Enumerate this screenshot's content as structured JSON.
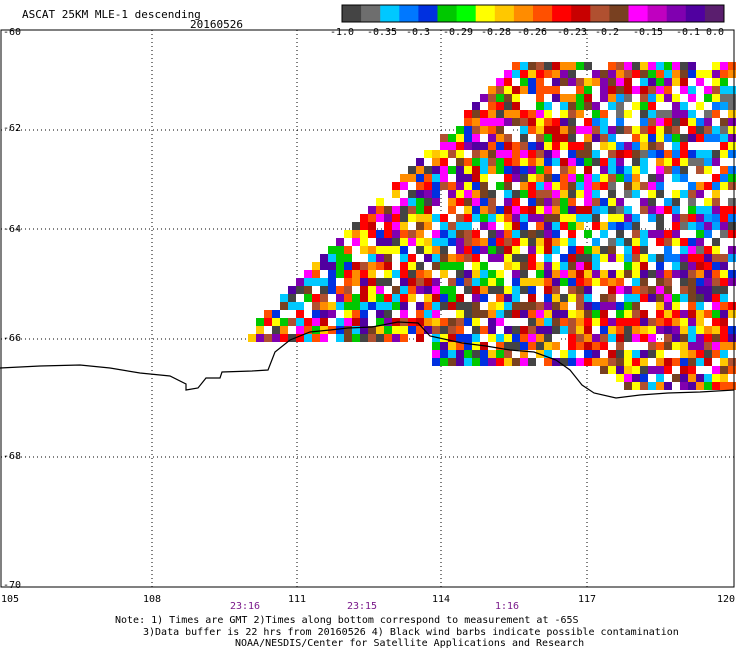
{
  "header": {
    "title": "ASCAT 25KM MLE-1 descending",
    "date": "20160526"
  },
  "colorbar": {
    "labels": [
      "-1.0",
      "-0.35",
      "-0.3",
      "-0.29",
      "-0.28",
      "-0.26",
      "-0.23",
      "-0.2",
      "-0.15",
      "-0.1",
      "0.0"
    ],
    "colors": [
      "#444444",
      "#6e6e6e",
      "#00c8ff",
      "#0078ff",
      "#0030e0",
      "#00c800",
      "#00ff00",
      "#ffff00",
      "#ffc800",
      "#ff8c00",
      "#ff5000",
      "#ff0000",
      "#c80000",
      "#b05030",
      "#784020",
      "#ff00ff",
      "#c000c0",
      "#8000b0",
      "#5000a0",
      "#5a1e6e"
    ]
  },
  "axes": {
    "latitude_labels": [
      "-60",
      "-62",
      "-64",
      "-66",
      "-68",
      "-70"
    ],
    "longitude_labels": [
      "105",
      "108",
      "111",
      "114",
      "117",
      "120"
    ],
    "time_labels": [
      "23:16",
      "23:15",
      "1:16"
    ]
  },
  "footer": {
    "line1": "Note: 1) Times are GMT 2)Times along bottom correspond to measurement at -65S",
    "line2": "3)Data buffer is 22 hrs from 20160526 4) Black wind barbs indicate possible contamination",
    "line3": "NOAA/NESDIS/Center for Satellite Applications and Research"
  }
}
